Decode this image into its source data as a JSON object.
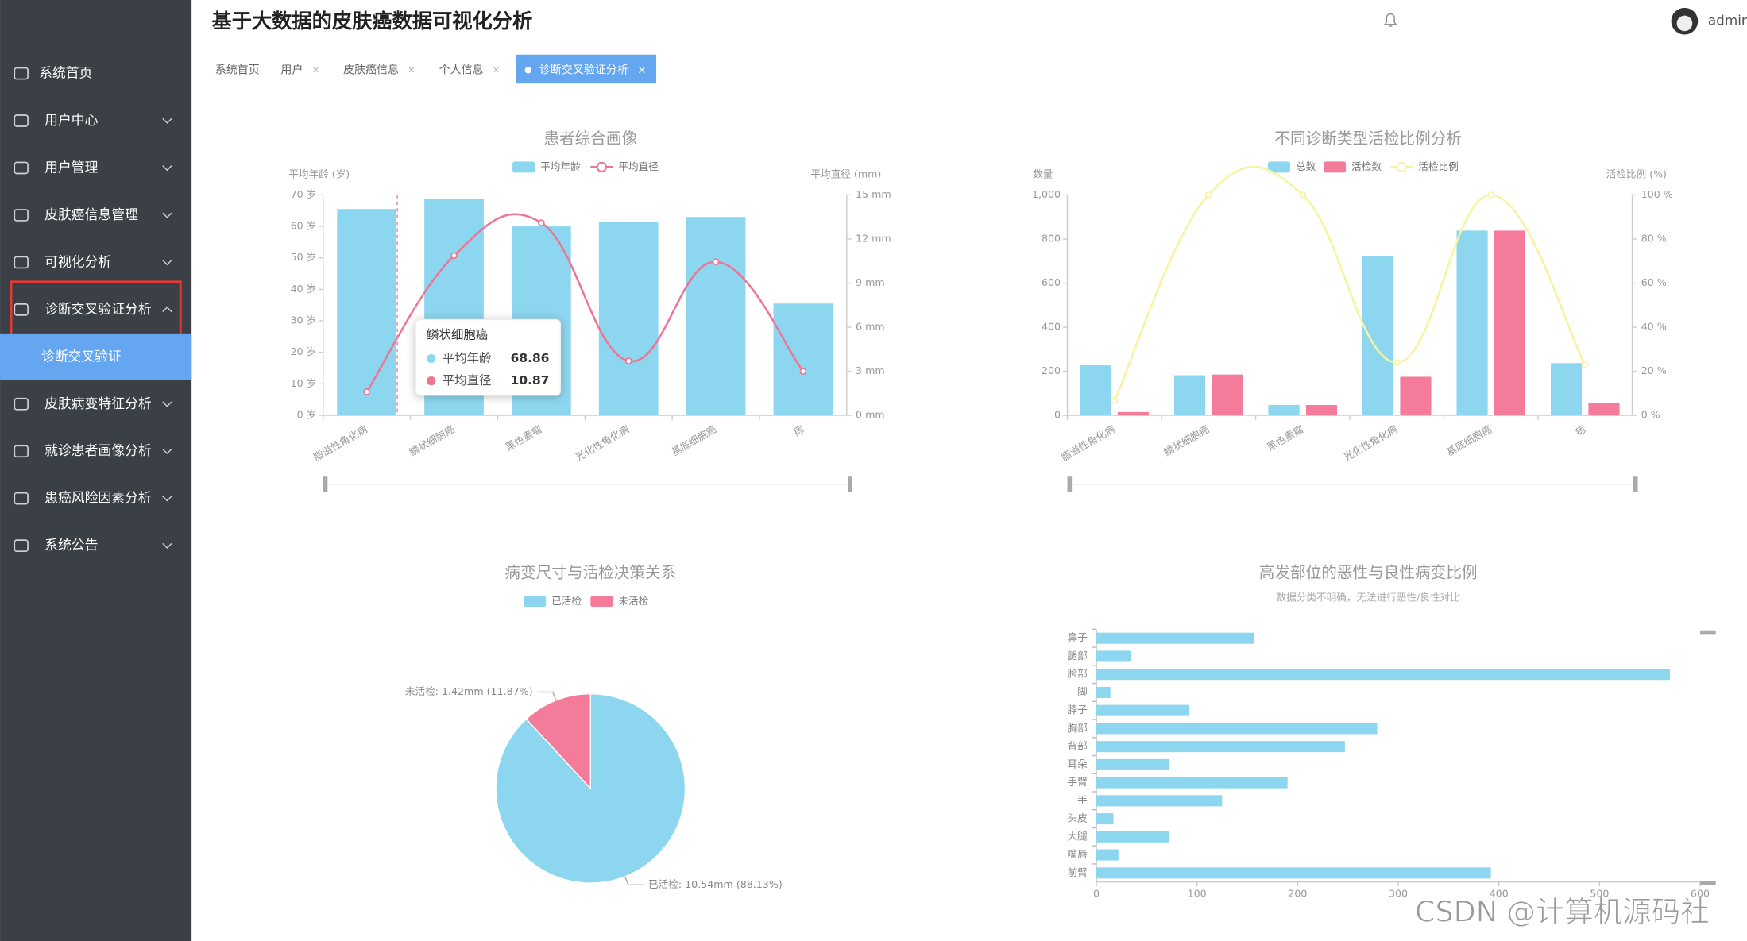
{
  "header": {
    "title": "基于大数据的皮肤癌数据可视化分析",
    "user": "admin"
  },
  "sidebar": {
    "menu": [
      {
        "label": "系统首页"
      },
      {
        "label": "用户中心"
      },
      {
        "label": "用户管理"
      },
      {
        "label": "皮肤癌信息管理"
      },
      {
        "label": "可视化分析"
      },
      {
        "label": "诊断交叉验证分析",
        "children": [
          "诊断交叉验证"
        ]
      },
      {
        "label": "皮肤病变特征分析"
      },
      {
        "label": "就诊患者画像分析"
      },
      {
        "label": "患癌风险因素分析"
      },
      {
        "label": "系统公告"
      }
    ]
  },
  "tabs": {
    "items": [
      "系统首页",
      "用户",
      "皮肤癌信息",
      "个人信息"
    ],
    "active": "诊断交叉验证分析"
  },
  "watermark": "CSDN @计算机源码社",
  "chart_data": [
    {
      "type": "bar",
      "title": "患者综合画像",
      "y_label": "平均年龄 (岁)",
      "y2_label": "平均直径 (mm)",
      "categories": [
        "脂溢性角化病",
        "鳞状细胞癌",
        "黑色素瘤",
        "光化性角化病",
        "基底细胞癌",
        "痣"
      ],
      "series": [
        {
          "name": "平均年龄",
          "type": "bar",
          "color": "#8dd6ef",
          "values": [
            65.5,
            68.86,
            60,
            61.5,
            63,
            35.5
          ]
        },
        {
          "name": "平均直径",
          "type": "line",
          "axis": "y2",
          "color": "#ee7596",
          "values": [
            1.6,
            10.87,
            13.1,
            3.7,
            10.45,
            3.0
          ]
        }
      ],
      "ylim": [
        0,
        70
      ],
      "yticks": [
        {
          "value": 0,
          "label": "0 岁"
        },
        {
          "value": 10,
          "label": "10 岁"
        },
        {
          "value": 20,
          "label": "20 岁"
        },
        {
          "value": 30,
          "label": "30 岁"
        },
        {
          "value": 40,
          "label": "40 岁"
        },
        {
          "value": 50,
          "label": "50 岁"
        },
        {
          "value": 60,
          "label": "60 岁"
        },
        {
          "value": 70,
          "label": "70 岁"
        }
      ],
      "y2lim": [
        0,
        15
      ],
      "y2ticks": [
        {
          "value": 0,
          "label": "0 mm"
        },
        {
          "value": 3,
          "label": "3 mm"
        },
        {
          "value": 6,
          "label": "6 mm"
        },
        {
          "value": 9,
          "label": "9 mm"
        },
        {
          "value": 12,
          "label": "12 mm"
        },
        {
          "value": 15,
          "label": "15 mm"
        }
      ]
    },
    {
      "type": "bar",
      "title": "不同诊断类型活检比例分析",
      "y_label": "数量",
      "y2_label": "活检比例 (%)",
      "categories": [
        "脂溢性角化病",
        "鳞状细胞癌",
        "黑色素瘤",
        "光化性角化病",
        "基底细胞癌",
        "痣"
      ],
      "series": [
        {
          "name": "总数",
          "type": "bar",
          "color": "#8dd6ef",
          "values": [
            227,
            182,
            47,
            722,
            838,
            237
          ]
        },
        {
          "name": "活检数",
          "type": "bar",
          "color": "#f47b99",
          "values": [
            15,
            185,
            47,
            175,
            838,
            55
          ]
        },
        {
          "name": "活检比例",
          "type": "line",
          "axis": "y2",
          "color": "#f7f3a0",
          "values": [
            6.6,
            100,
            100,
            24,
            100,
            23
          ]
        }
      ],
      "ylim": [
        0,
        1000
      ],
      "yticks": [
        0,
        200,
        400,
        600,
        800,
        {
          "value": 1000,
          "label": "1,000"
        }
      ],
      "y2lim": [
        0,
        100
      ],
      "y2ticks": [
        {
          "value": 0,
          "label": "0 %"
        },
        {
          "value": 20,
          "label": "20 %"
        },
        {
          "value": 40,
          "label": "40 %"
        },
        {
          "value": 60,
          "label": "60 %"
        },
        {
          "value": 80,
          "label": "80 %"
        },
        {
          "value": 100,
          "label": "100 %"
        }
      ]
    },
    {
      "type": "pie",
      "title": "病变尺寸与活检决策关系",
      "categories": [
        "已活检",
        "未活检"
      ],
      "values": [
        10.54,
        1.42
      ],
      "value_labels": [
        "已活检: 10.54mm (88.13%)",
        "未活检: 1.42mm (11.87%)"
      ],
      "colors": [
        "#8dd6ef",
        "#f47b99"
      ]
    },
    {
      "type": "hbar",
      "title": "高发部位的恶性与良性病变比例",
      "subtitle": "数据分类不明确，无法进行恶性/良性对比",
      "categories": [
        "鼻子",
        "腿部",
        "脸部",
        "脚",
        "脖子",
        "胸部",
        "背部",
        "耳朵",
        "手臂",
        "手",
        "头皮",
        "大腿",
        "嘴唇",
        "前臂"
      ],
      "values": [
        157,
        34,
        570,
        14,
        92,
        279,
        247,
        72,
        190,
        125,
        17,
        72,
        22,
        392
      ],
      "color": "#8dd6ef",
      "xlim": [
        0,
        600
      ],
      "xticks": [
        0,
        100,
        200,
        300,
        400,
        500,
        600
      ]
    }
  ]
}
